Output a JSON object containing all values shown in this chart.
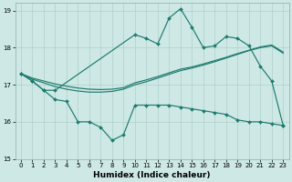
{
  "xlabel": "Humidex (Indice chaleur)",
  "bg_color": "#cde8e5",
  "line_color": "#1e7b6e",
  "grid_color": "#afd0cc",
  "xlim": [
    -0.5,
    23.5
  ],
  "ylim": [
    15.0,
    19.2
  ],
  "yticks": [
    15,
    16,
    17,
    18,
    19
  ],
  "xticks": [
    0,
    1,
    2,
    3,
    4,
    5,
    6,
    7,
    8,
    9,
    10,
    11,
    12,
    13,
    14,
    15,
    16,
    17,
    18,
    19,
    20,
    21,
    22,
    23
  ],
  "line_upper_x": [
    0,
    1,
    2,
    3,
    10,
    11,
    12,
    13,
    14,
    15,
    16,
    17,
    18,
    19,
    20,
    21,
    22,
    23
  ],
  "line_upper_y": [
    17.3,
    17.1,
    16.85,
    16.85,
    18.35,
    18.25,
    18.1,
    18.8,
    19.05,
    18.55,
    18.0,
    18.05,
    18.3,
    18.25,
    18.05,
    17.5,
    17.1,
    15.9
  ],
  "line_lower_x": [
    0,
    1,
    2,
    3,
    4,
    5,
    6,
    7,
    8,
    9,
    10,
    11,
    12,
    13,
    14,
    15,
    16,
    17,
    18,
    19,
    20,
    21,
    22,
    23
  ],
  "line_lower_y": [
    17.3,
    17.1,
    16.85,
    16.6,
    16.55,
    16.0,
    16.0,
    15.85,
    15.5,
    15.65,
    16.45,
    16.45,
    16.45,
    16.45,
    16.4,
    16.35,
    16.3,
    16.25,
    16.2,
    16.05,
    16.0,
    16.0,
    15.95,
    15.9
  ],
  "line_trend1_x": [
    0,
    1,
    2,
    3,
    4,
    5,
    6,
    7,
    8,
    9,
    10,
    11,
    12,
    13,
    14,
    15,
    16,
    17,
    18,
    19,
    20,
    21,
    22,
    23
  ],
  "line_trend1_y": [
    17.3,
    17.15,
    17.05,
    16.95,
    16.88,
    16.83,
    16.8,
    16.8,
    16.82,
    16.88,
    17.0,
    17.08,
    17.18,
    17.28,
    17.38,
    17.45,
    17.53,
    17.62,
    17.72,
    17.82,
    17.92,
    18.0,
    18.05,
    17.85
  ],
  "line_trend2_x": [
    0,
    1,
    2,
    3,
    4,
    5,
    6,
    7,
    8,
    9,
    10,
    11,
    12,
    13,
    14,
    15,
    16,
    17,
    18,
    19,
    20,
    21,
    22,
    23
  ],
  "line_trend2_y": [
    17.3,
    17.18,
    17.1,
    17.02,
    16.96,
    16.91,
    16.88,
    16.87,
    16.88,
    16.92,
    17.05,
    17.13,
    17.22,
    17.32,
    17.42,
    17.48,
    17.56,
    17.65,
    17.74,
    17.84,
    17.93,
    18.02,
    18.07,
    17.88
  ]
}
